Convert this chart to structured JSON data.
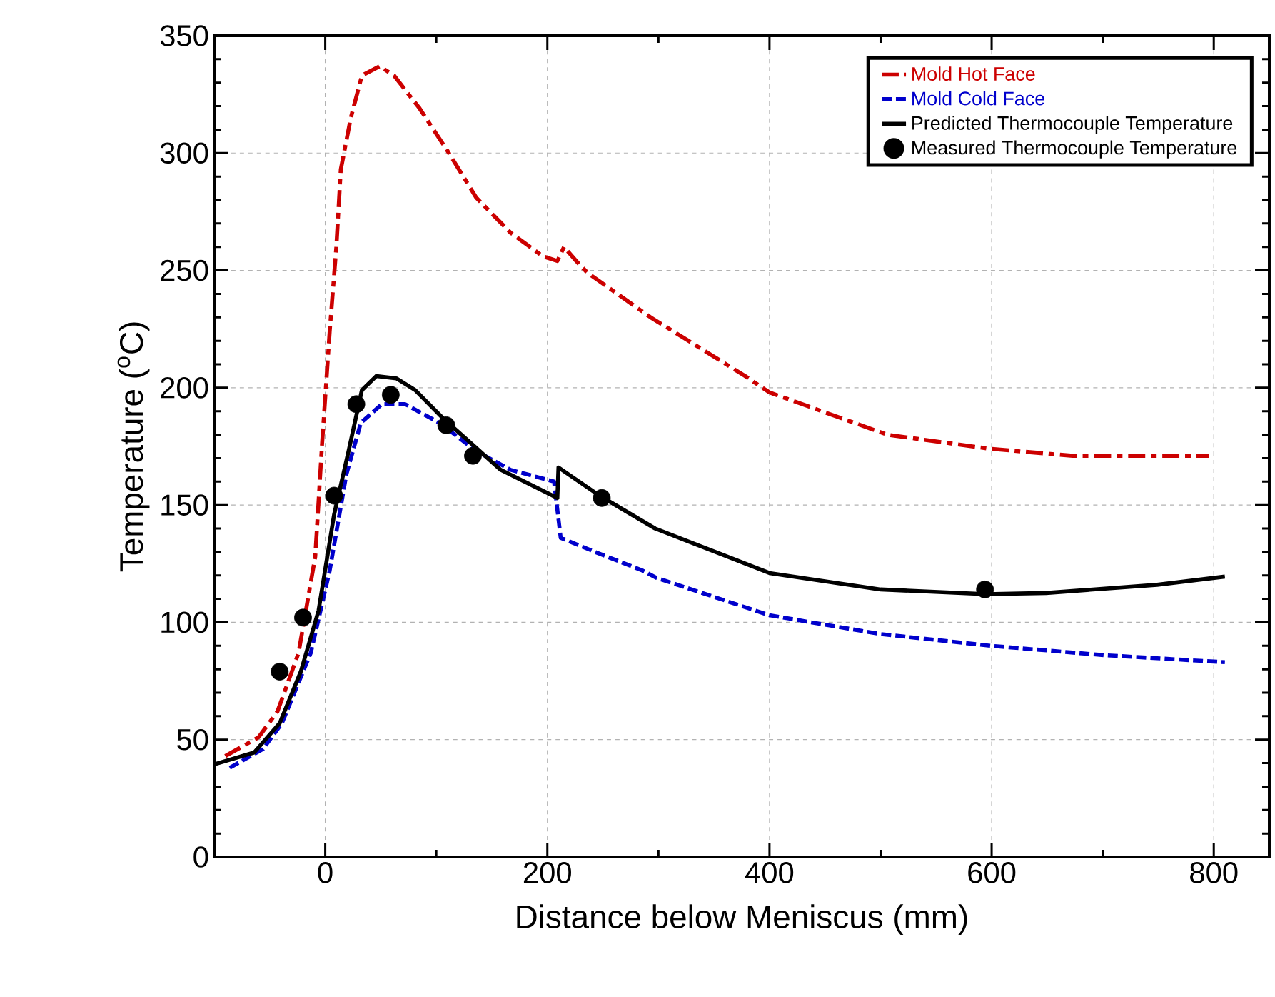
{
  "chart_data": {
    "type": "line",
    "xlabel": "Distance below Meniscus (mm)",
    "ylabel": "Temperature ($^{o}$C)",
    "xlim": [
      -100,
      850
    ],
    "ylim": [
      0,
      350
    ],
    "xticks": [
      0,
      200,
      400,
      600,
      800
    ],
    "yticks": [
      0,
      50,
      100,
      150,
      200,
      250,
      300,
      350
    ],
    "grid": true,
    "legend": "top right",
    "series": [
      {
        "name": "Mold Hot Face",
        "color": "#cc0000",
        "line_style": "dashdot",
        "x": [
          -90,
          -60,
          -43,
          -24,
          -9,
          -3,
          4,
          10,
          14,
          23,
          33,
          49,
          62,
          85,
          110,
          136,
          167,
          196,
          209,
          215,
          226,
          236,
          293,
          378,
          400,
          506,
          598,
          673,
          796
        ],
        "values": [
          43,
          51,
          62,
          87,
          128,
          175,
          224,
          260,
          293,
          315,
          333,
          337,
          333,
          319,
          301,
          281,
          266,
          256,
          254,
          260,
          254,
          249,
          230,
          205,
          198,
          180,
          174,
          171,
          171
        ]
      },
      {
        "name": "Mold Cold Face",
        "color": "#0000cc",
        "line_style": "dashed",
        "x": [
          -86,
          -56,
          -39,
          -13,
          4,
          19,
          32,
          51,
          72,
          103,
          136,
          167,
          206,
          212,
          243,
          286,
          298,
          400,
          500,
          599,
          701,
          810
        ],
        "values": [
          38,
          46,
          57,
          87,
          122,
          163,
          185,
          193,
          193,
          185,
          173,
          165,
          160,
          136,
          130,
          122,
          119,
          103,
          95,
          90,
          86,
          83
        ]
      },
      {
        "name": "Predicted Thermocouple Temperature",
        "color": "#000000",
        "line_style": "solid",
        "x": [
          -99,
          -64,
          -41,
          -22,
          -6,
          8,
          21,
          33,
          46,
          64,
          81,
          106,
          132,
          158,
          209,
          210,
          247,
          297,
          400,
          500,
          595,
          649,
          749,
          810
        ],
        "values": [
          39.6,
          44.5,
          57,
          79,
          105,
          146,
          173,
          199,
          205,
          204,
          199,
          187,
          176,
          165,
          153,
          166,
          154,
          140,
          121,
          114,
          112,
          112.5,
          116,
          119.5
        ]
      },
      {
        "name": "Measured Thermocouple Temperature",
        "color": "#000000",
        "type": "scatter",
        "marker": "circle",
        "x": [
          -41,
          -20,
          8,
          28,
          59,
          109,
          133,
          249,
          594
        ],
        "values": [
          79,
          102,
          154,
          193,
          197,
          184,
          171,
          153,
          114
        ]
      }
    ]
  }
}
